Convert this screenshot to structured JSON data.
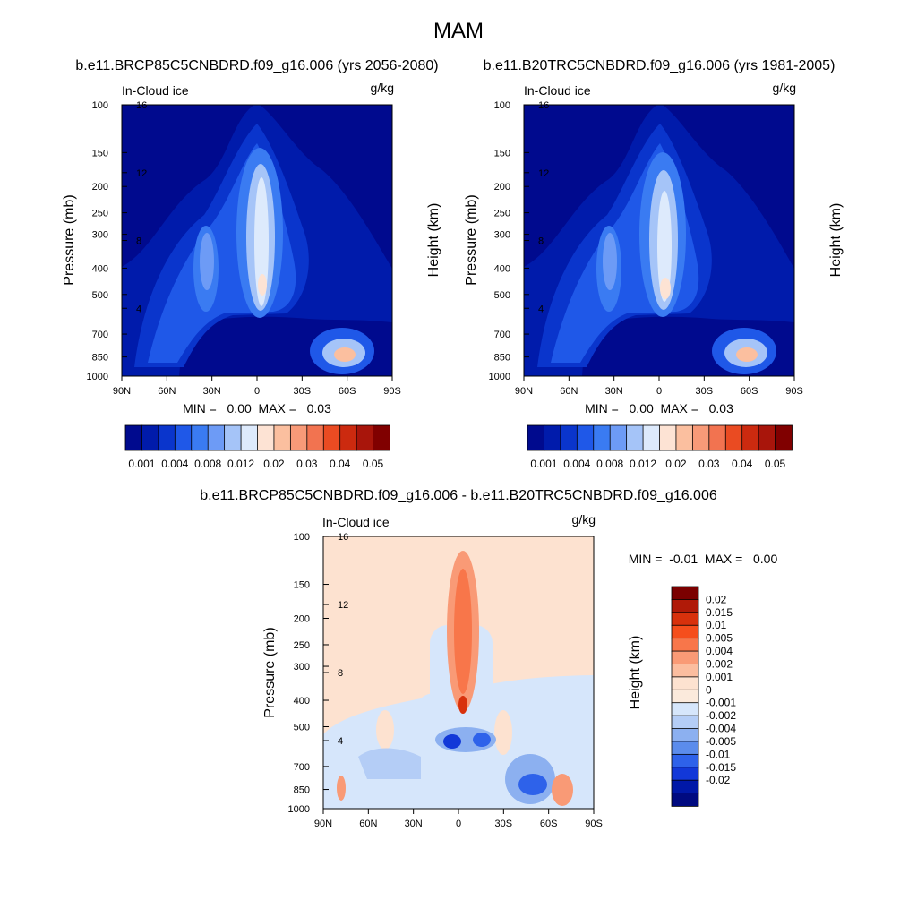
{
  "figure_title": "MAM",
  "panels": [
    {
      "id": "p1",
      "title": "b.e11.BRCP85C5CNBDRD.f09_g16.006 (yrs 2056-2080)",
      "field_label": "In-Cloud ice",
      "units": "g/kg",
      "ylabel": "Pressure (mb)",
      "y2label": "Height (km)",
      "minmax": "MIN =   0.00  MAX =   0.03"
    },
    {
      "id": "p2",
      "title": "b.e11.B20TRC5CNBDRD.f09_g16.006 (yrs 1981-2005)",
      "field_label": "In-Cloud ice",
      "units": "g/kg",
      "ylabel": "Pressure (mb)",
      "y2label": "Height (km)",
      "minmax": "MIN =   0.00  MAX =   0.03"
    },
    {
      "id": "p3",
      "title": "b.e11.BRCP85C5CNBDRD.f09_g16.006 - b.e11.B20TRC5CNBDRD.f09_g16.006",
      "field_label": "In-Cloud ice",
      "units": "g/kg",
      "ylabel": "Pressure (mb)",
      "y2label": "Height (km)",
      "minmax": "MIN =  -0.01  MAX =   0.00"
    }
  ],
  "chart_data": {
    "type": "heatmap",
    "x_ticks": [
      "90N",
      "60N",
      "30N",
      "0",
      "30S",
      "60S",
      "90S"
    ],
    "x_tick_values": [
      90,
      60,
      30,
      0,
      -30,
      -60,
      -90
    ],
    "y_pressure_ticks": [
      100,
      150,
      200,
      250,
      300,
      400,
      500,
      700,
      850,
      1000
    ],
    "y_height_ticks": [
      16,
      12,
      8,
      4
    ],
    "mean_colorbar": {
      "labels": [
        "0.001",
        "0.004",
        "0.008",
        "0.012",
        "0.02",
        "0.03",
        "0.04",
        "0.05"
      ],
      "colors": [
        "#000a8e",
        "#001bab",
        "#0a35cc",
        "#1f58e8",
        "#3a7bf2",
        "#6d9bf6",
        "#a5c4f8",
        "#ddeafc",
        "#fde3d4",
        "#fbbf9f",
        "#f89a78",
        "#f27350",
        "#ea4b22",
        "#cc2a0f",
        "#a8150b",
        "#800000"
      ]
    },
    "diff_colorbar": {
      "labels": [
        "0.02",
        "0.015",
        "0.01",
        "0.005",
        "0.004",
        "0.002",
        "0.001",
        "0",
        "-0.001",
        "-0.002",
        "-0.004",
        "-0.005",
        "-0.01",
        "-0.015",
        "-0.02"
      ],
      "colors": [
        "#7b0000",
        "#b01a08",
        "#d8310c",
        "#f54e1c",
        "#f8764a",
        "#f99a76",
        "#fbbd9f",
        "#fde2d0",
        "#fbeadc",
        "#d6e6fb",
        "#b4cdf6",
        "#8cb0f0",
        "#5b8cec",
        "#2e62ea",
        "#1238d8",
        "#0018a8",
        "#000a80"
      ]
    }
  }
}
